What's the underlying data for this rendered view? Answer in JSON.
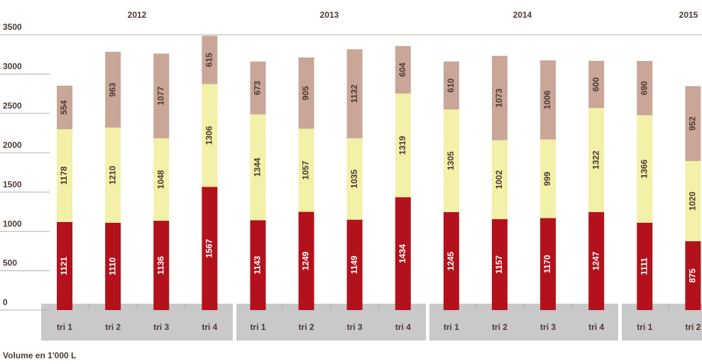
{
  "chart_data": {
    "type": "stacked_bar",
    "groups": [
      "2012",
      "2013",
      "2014",
      "2015"
    ],
    "categories": [
      "tri 1",
      "tri 2",
      "tri 3",
      "tri 4",
      "tri 1",
      "tri 2",
      "tri 3",
      "tri 4",
      "tri 1",
      "tri 2",
      "tri 3",
      "tri 4",
      "tri 1",
      "tri 2"
    ],
    "series": [
      {
        "color": "#b3121c",
        "values": [
          1121,
          1110,
          1136,
          1567,
          1143,
          1249,
          1149,
          1434,
          1245,
          1157,
          1170,
          1247,
          1111,
          875
        ]
      },
      {
        "color": "#f3f0a8",
        "values": [
          1178,
          1210,
          1048,
          1306,
          1344,
          1057,
          1035,
          1319,
          1305,
          1002,
          999,
          1322,
          1366,
          1020
        ]
      },
      {
        "color": "#c9a698",
        "values": [
          554,
          963,
          1077,
          615,
          673,
          905,
          1132,
          604,
          610,
          1073,
          1006,
          600,
          690,
          952
        ]
      }
    ],
    "ylim": [
      0,
      3500
    ],
    "yticks": [
      0,
      500,
      1000,
      1500,
      2000,
      2500,
      3000,
      3500
    ],
    "y_label": "Volume en 1'000 L"
  }
}
